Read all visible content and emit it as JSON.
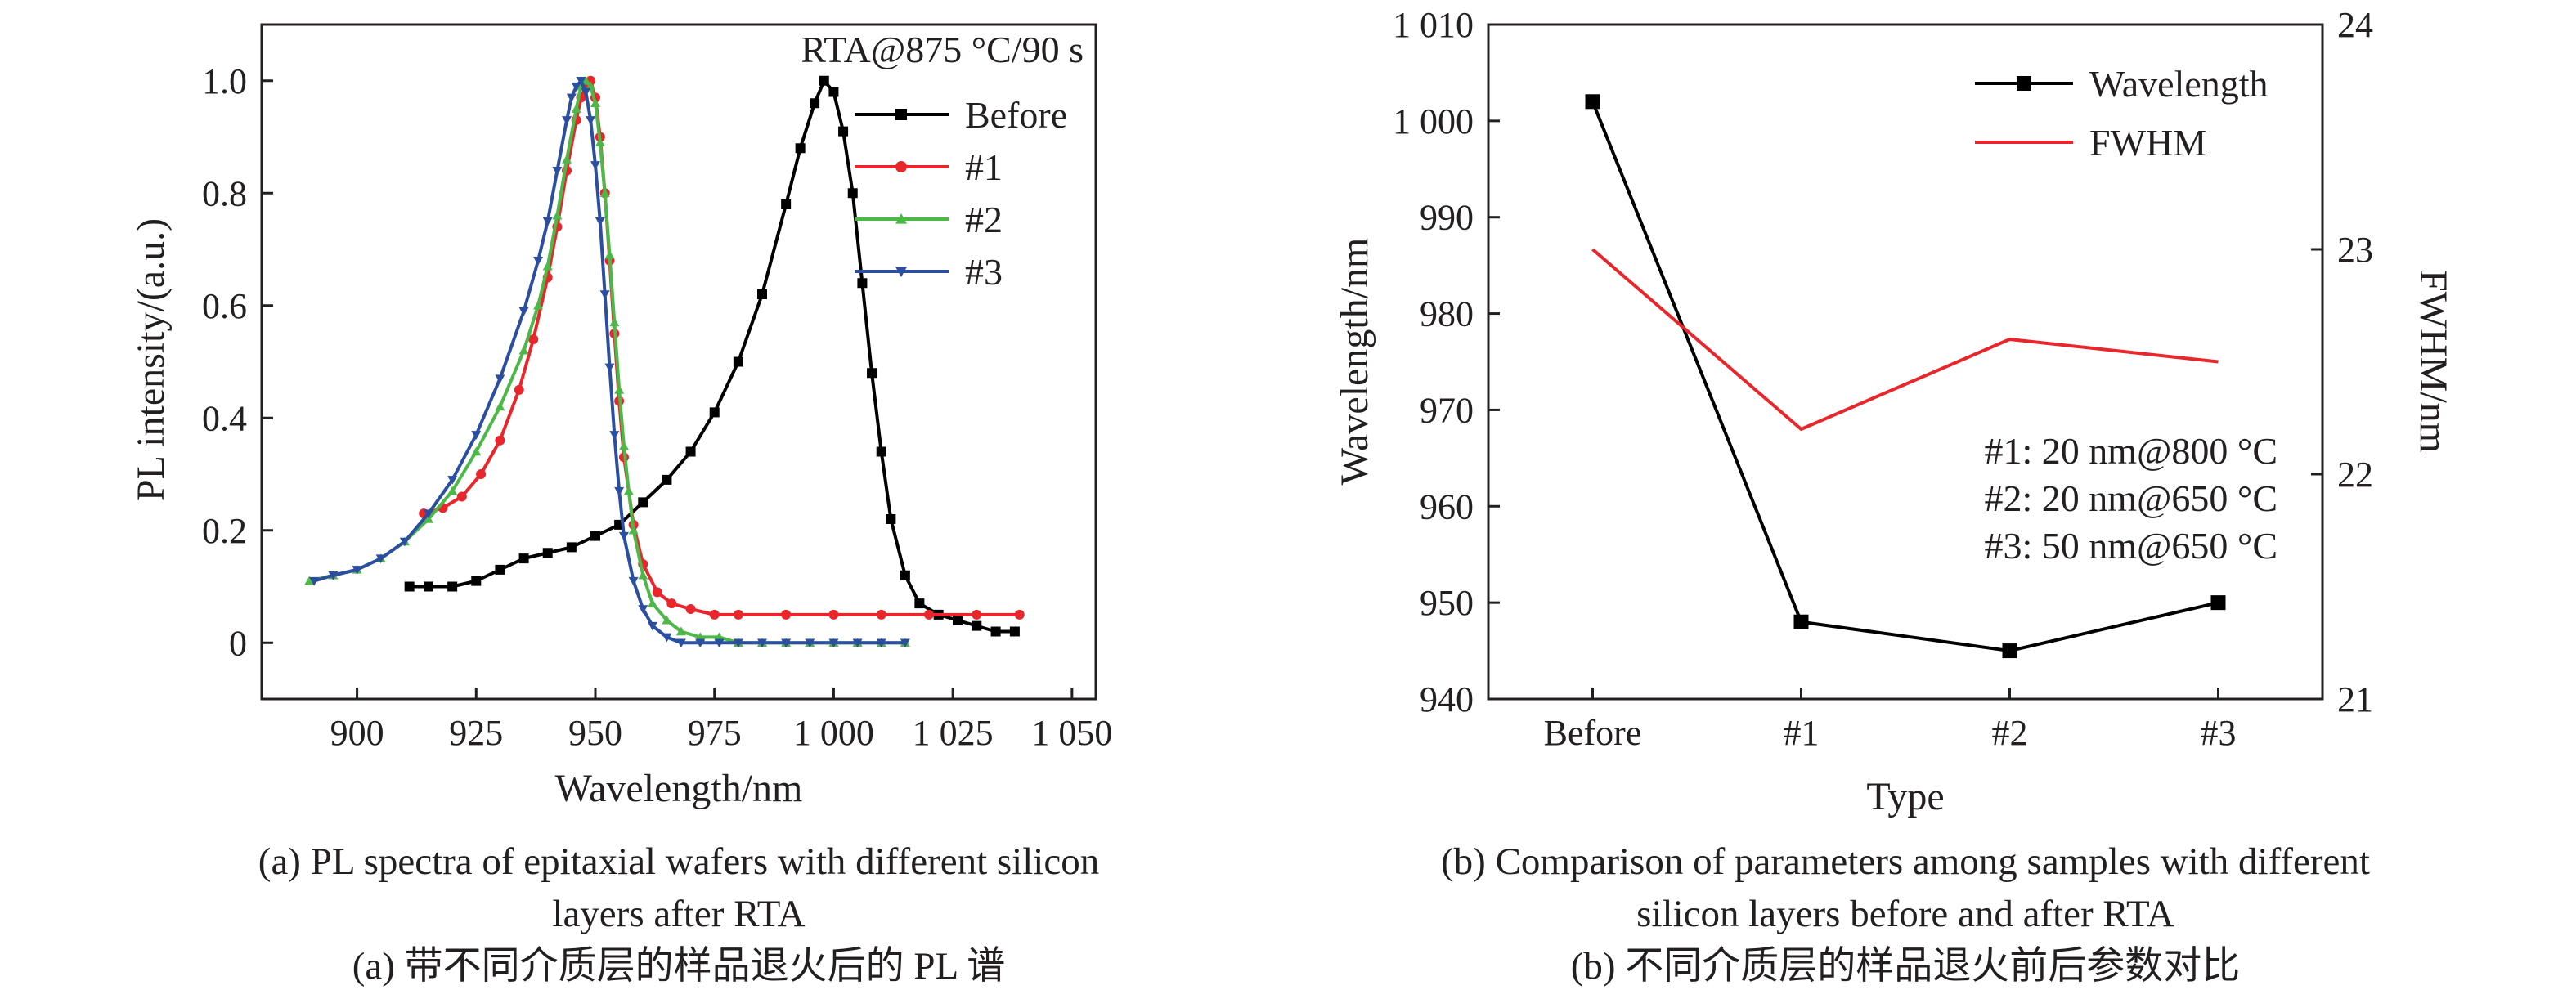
{
  "chart_data": [
    {
      "type": "line",
      "xlabel": "Wavelength/nm",
      "ylabel": "PL intensity/(a.u.)",
      "annotation": "RTA@875 °C/90 s",
      "xlim": [
        880,
        1055
      ],
      "ylim": [
        -0.1,
        1.1
      ],
      "xticks": [
        900,
        925,
        950,
        975,
        1000,
        1025,
        1050
      ],
      "xtick_labels": [
        "900",
        "925",
        "950",
        "975",
        "1 000",
        "1 025",
        "1 050"
      ],
      "yticks": [
        0,
        0.2,
        0.4,
        0.6,
        0.8,
        1.0
      ],
      "ytick_labels": [
        "0",
        "0.2",
        "0.4",
        "0.6",
        "0.8",
        "1.0"
      ],
      "legend_position": "top-right",
      "series": [
        {
          "name": "Before",
          "color": "#000000",
          "marker": "square",
          "x": [
            911,
            915,
            920,
            925,
            930,
            935,
            940,
            945,
            950,
            955,
            960,
            965,
            970,
            975,
            980,
            985,
            990,
            993,
            996,
            998,
            1000,
            1002,
            1004,
            1006,
            1008,
            1010,
            1012,
            1015,
            1018,
            1022,
            1026,
            1030,
            1034,
            1038
          ],
          "y": [
            0.1,
            0.1,
            0.1,
            0.11,
            0.13,
            0.15,
            0.16,
            0.17,
            0.19,
            0.21,
            0.25,
            0.29,
            0.34,
            0.41,
            0.5,
            0.62,
            0.78,
            0.88,
            0.96,
            1.0,
            0.98,
            0.91,
            0.8,
            0.64,
            0.48,
            0.34,
            0.22,
            0.12,
            0.07,
            0.05,
            0.04,
            0.03,
            0.02,
            0.02
          ]
        },
        {
          "name": "#1",
          "color": "#e8262b",
          "marker": "circle",
          "x": [
            914,
            918,
            922,
            926,
            930,
            934,
            937,
            940,
            942,
            944,
            946,
            947,
            948,
            949,
            950,
            951,
            952,
            953,
            954,
            955,
            956,
            958,
            960,
            963,
            966,
            970,
            975,
            980,
            990,
            1000,
            1010,
            1020,
            1030,
            1039
          ],
          "y": [
            0.23,
            0.24,
            0.26,
            0.3,
            0.36,
            0.45,
            0.54,
            0.65,
            0.74,
            0.84,
            0.93,
            0.97,
            0.99,
            1.0,
            0.97,
            0.9,
            0.8,
            0.68,
            0.55,
            0.43,
            0.33,
            0.21,
            0.14,
            0.09,
            0.07,
            0.06,
            0.05,
            0.05,
            0.05,
            0.05,
            0.05,
            0.05,
            0.05,
            0.05
          ]
        },
        {
          "name": "#2",
          "color": "#4cb848",
          "marker": "triangle",
          "x": [
            890,
            895,
            900,
            905,
            910,
            915,
            920,
            925,
            930,
            935,
            938,
            940,
            942,
            944,
            946,
            947,
            948,
            949,
            950,
            951,
            952,
            953,
            954,
            955,
            956,
            957,
            958,
            960,
            962,
            965,
            968,
            972,
            976,
            980,
            985,
            990,
            995,
            1000,
            1005,
            1010,
            1015
          ],
          "y": [
            0.11,
            0.12,
            0.13,
            0.15,
            0.18,
            0.22,
            0.27,
            0.34,
            0.42,
            0.52,
            0.6,
            0.67,
            0.76,
            0.86,
            0.95,
            0.99,
            1.0,
            0.99,
            0.96,
            0.89,
            0.8,
            0.69,
            0.57,
            0.45,
            0.35,
            0.27,
            0.2,
            0.12,
            0.07,
            0.04,
            0.02,
            0.01,
            0.01,
            0.0,
            0.0,
            0.0,
            0.0,
            0.0,
            0.0,
            0.0,
            0.0
          ]
        },
        {
          "name": "#3",
          "color": "#2c4ea0",
          "marker": "triangle-down",
          "x": [
            891,
            895,
            900,
            905,
            910,
            915,
            920,
            925,
            930,
            935,
            938,
            940,
            942,
            944,
            945,
            946,
            947,
            948,
            949,
            950,
            951,
            952,
            953,
            954,
            955,
            956,
            958,
            960,
            962,
            965,
            968,
            972,
            976,
            980,
            985,
            990,
            995,
            1000,
            1005,
            1010,
            1015
          ],
          "y": [
            0.11,
            0.12,
            0.13,
            0.15,
            0.18,
            0.23,
            0.29,
            0.37,
            0.47,
            0.59,
            0.68,
            0.75,
            0.84,
            0.93,
            0.97,
            0.99,
            1.0,
            0.98,
            0.93,
            0.85,
            0.75,
            0.62,
            0.49,
            0.37,
            0.27,
            0.19,
            0.11,
            0.06,
            0.03,
            0.01,
            0.0,
            0.0,
            0.0,
            0.0,
            0.0,
            0.0,
            0.0,
            0.0,
            0.0,
            0.0,
            0.0
          ]
        }
      ]
    },
    {
      "type": "line",
      "xlabel": "Type",
      "ylabel": "Wavelength/nm",
      "y2label": "FWHM/nm",
      "categories": [
        "Before",
        "#1",
        "#2",
        "#3"
      ],
      "ylim": [
        940,
        1010
      ],
      "yticks": [
        940,
        950,
        960,
        970,
        980,
        990,
        1000,
        1010
      ],
      "ytick_labels": [
        "940",
        "950",
        "960",
        "970",
        "980",
        "990",
        "1 000",
        "1 010"
      ],
      "y2lim": [
        21,
        24
      ],
      "y2ticks": [
        21,
        22,
        23,
        24
      ],
      "y2tick_labels": [
        "21",
        "22",
        "23",
        "24"
      ],
      "legend_position": "top-right",
      "annotations": [
        "#1: 20 nm@800 °C",
        "#2: 20 nm@650 °C",
        "#3: 50 nm@650 °C"
      ],
      "series": [
        {
          "name": "Wavelength",
          "axis": "left",
          "color": "#000000",
          "marker": "square",
          "values": [
            1002,
            948,
            945,
            950
          ]
        },
        {
          "name": "FWHM",
          "axis": "right",
          "color": "#e8262b",
          "marker": "none",
          "values": [
            23.0,
            22.2,
            22.6,
            22.5
          ]
        }
      ]
    }
  ],
  "captions": {
    "a_en": "(a) PL spectra of epitaxial wafers with different silicon layers after RTA",
    "a_en_line1": "(a) PL spectra of epitaxial wafers with different silicon",
    "a_en_line2": "layers after RTA",
    "a_zh": "(a) 带不同介质层的样品退火后的 PL 谱",
    "b_en_line1": "(b) Comparison of parameters among samples with different",
    "b_en_line2": "silicon layers before and after RTA",
    "b_zh": "(b) 不同介质层的样品退火前后参数对比"
  }
}
